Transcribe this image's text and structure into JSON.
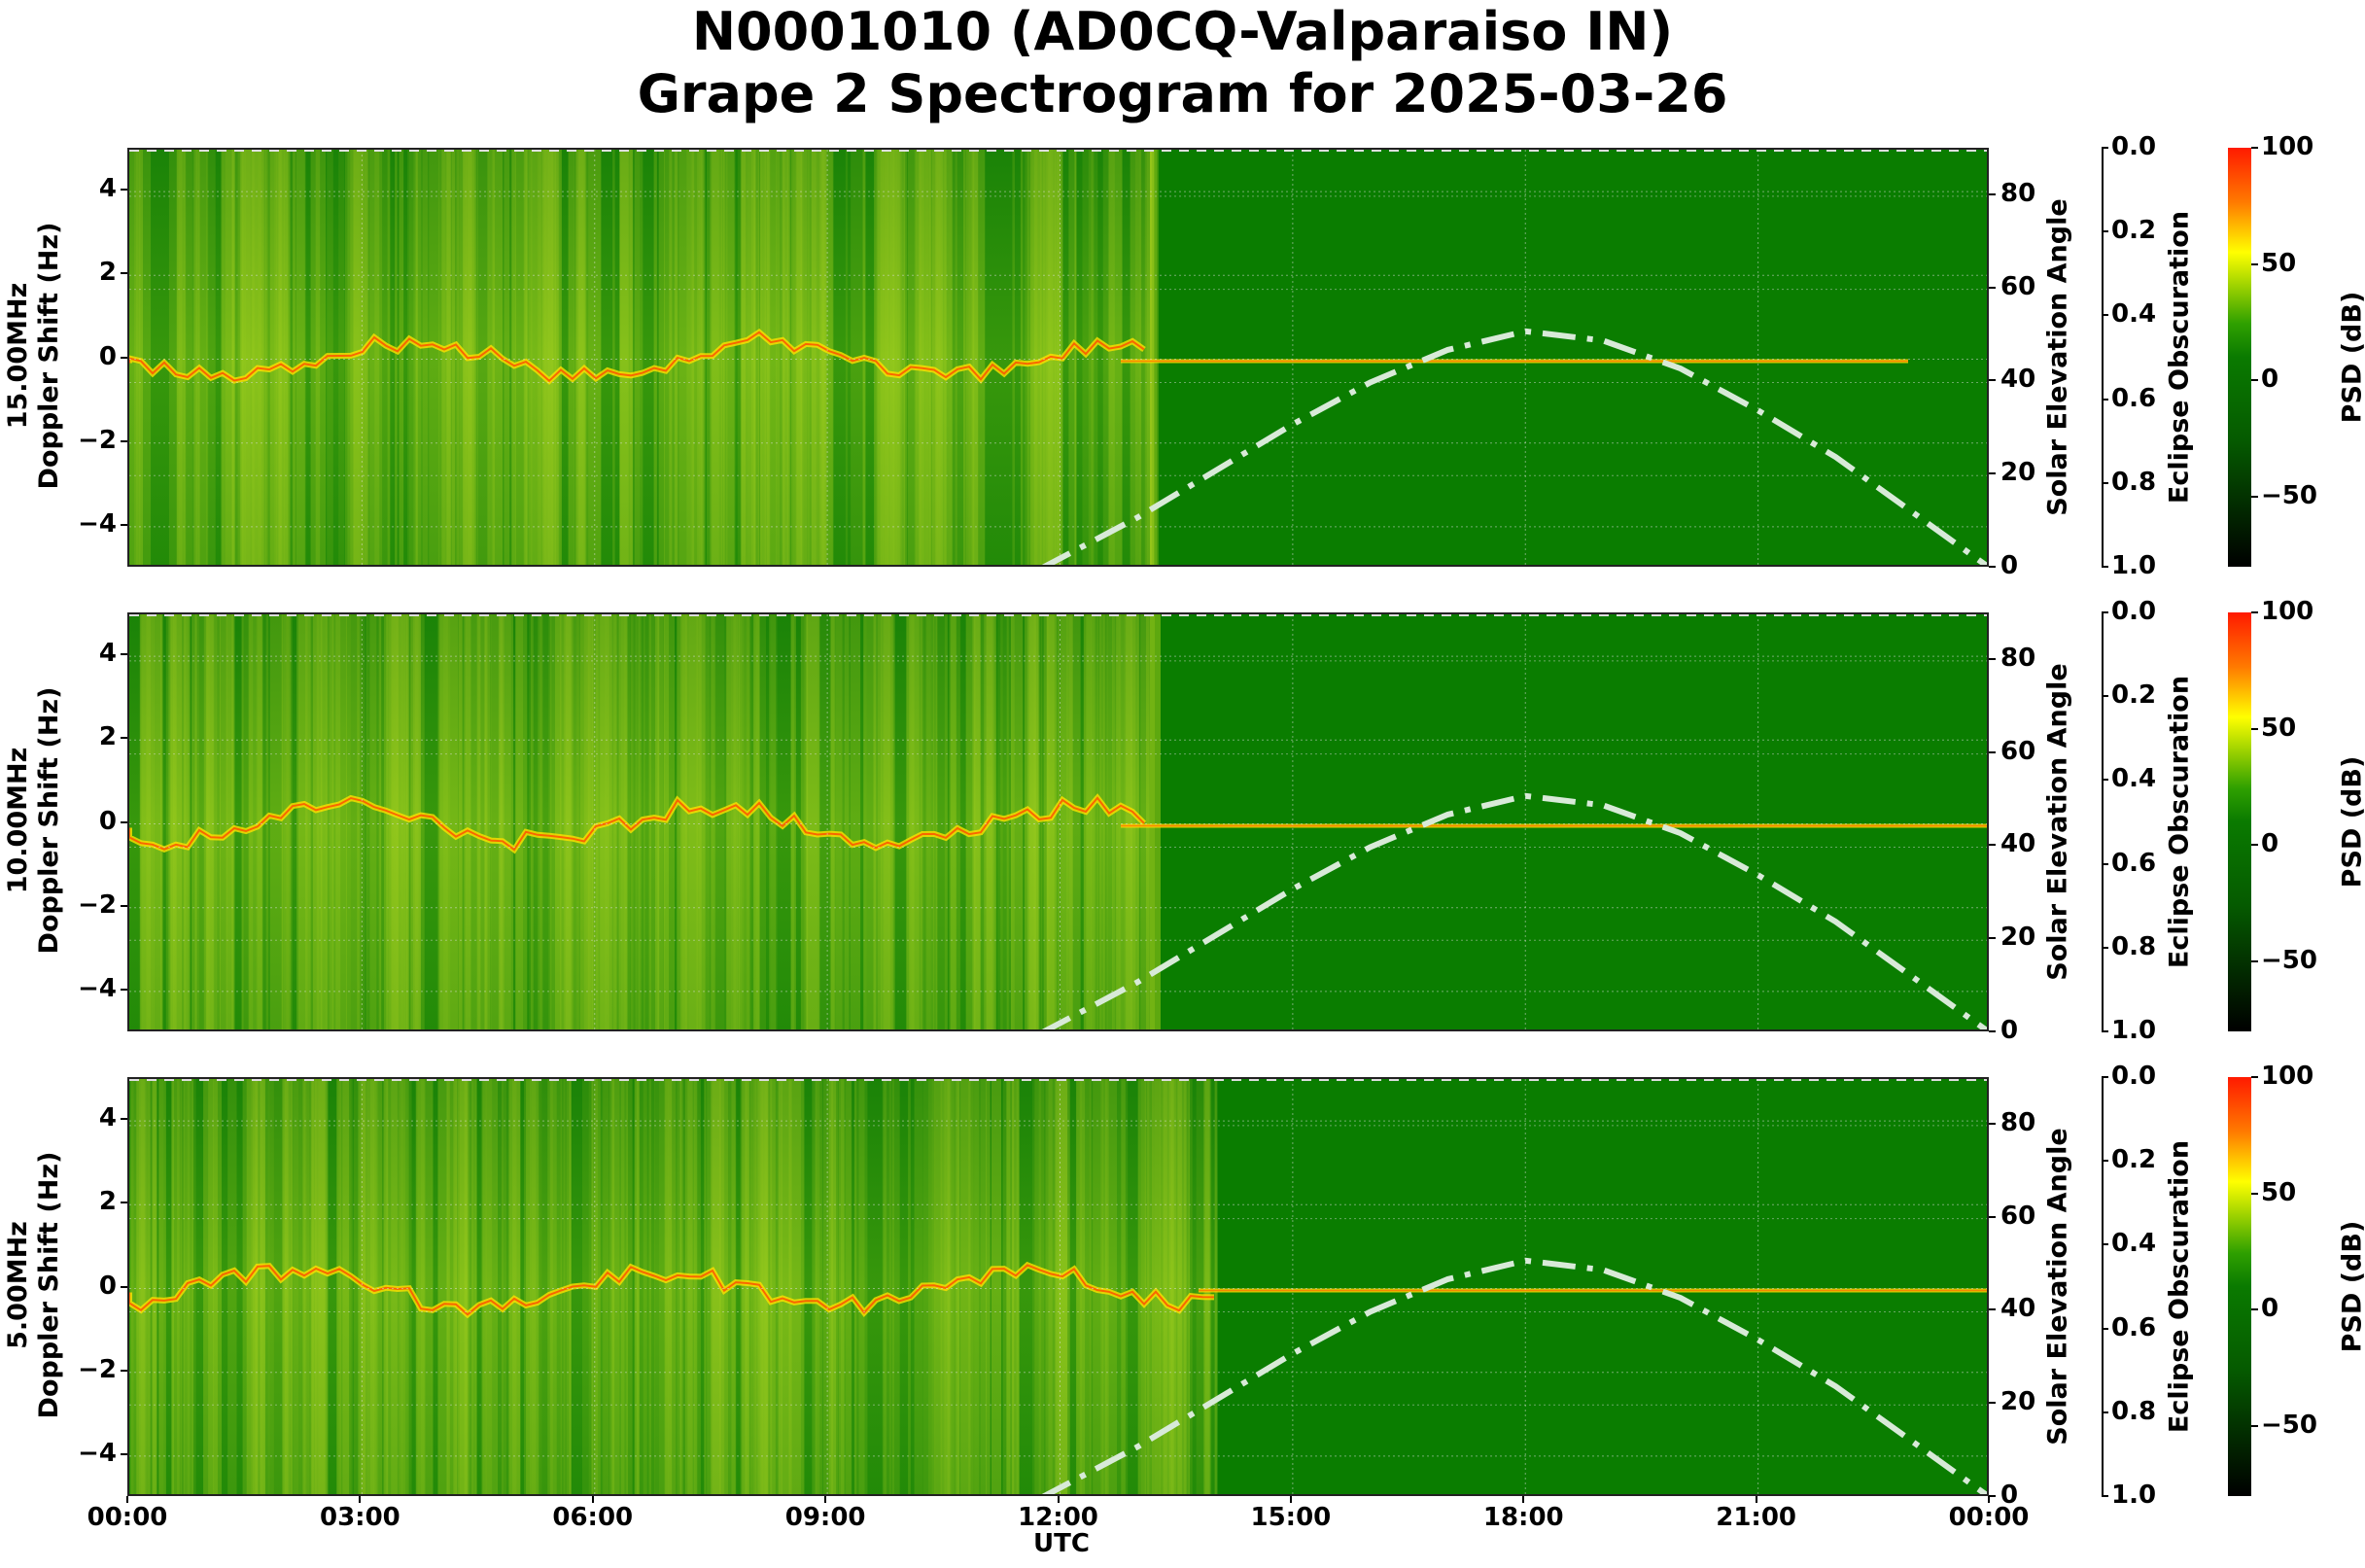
{
  "title": {
    "line1": "N0001010 (AD0CQ-Valparaiso IN)",
    "line2": "Grape 2 Spectrogram for 2025-03-26"
  },
  "x_axis": {
    "label": "UTC",
    "ticks": [
      "00:00",
      "03:00",
      "06:00",
      "09:00",
      "12:00",
      "15:00",
      "18:00",
      "21:00",
      "00:00"
    ]
  },
  "y_axis": {
    "ticks": [
      "4",
      "2",
      "0",
      "−2",
      "−4"
    ],
    "doppler_label": "Doppler Shift (Hz)"
  },
  "right_axis": {
    "label": "Solar Elevation Angle",
    "ticks": [
      "80",
      "60",
      "40",
      "20",
      "0"
    ]
  },
  "eclipse_axis": {
    "label": "Eclipse Obscuration",
    "ticks": [
      "0.0",
      "0.2",
      "0.4",
      "0.6",
      "0.8",
      "1.0"
    ]
  },
  "colorbar": {
    "label": "PSD (dB)",
    "ticks": [
      "100",
      "50",
      "0",
      "−50"
    ]
  },
  "panels": [
    {
      "freq": "15.00MHz"
    },
    {
      "freq": "10.00MHz"
    },
    {
      "freq": "5.00MHz"
    }
  ],
  "chart_data": {
    "type": "heatmap",
    "title": "N0001010 (AD0CQ-Valparaiso IN) Grape 2 Spectrogram for 2025-03-26",
    "xlabel": "UTC",
    "x_ticks": [
      "00:00",
      "03:00",
      "06:00",
      "09:00",
      "12:00",
      "15:00",
      "18:00",
      "21:00",
      "00:00"
    ],
    "ylabel": "Doppler Shift (Hz)",
    "ylim": [
      -5,
      5
    ],
    "y_ticks": [
      -4,
      -2,
      0,
      2,
      4
    ],
    "panels": [
      {
        "name": "15.00MHz",
        "carrier_doppler_hz": 0,
        "note": "strong diffuse Doppler spread 00:00-12:00, steady carrier 12:45-22:30"
      },
      {
        "name": "10.00MHz",
        "carrier_doppler_hz": 0,
        "note": "Doppler excursions up to +1.5 Hz near 03:00, steady carrier after 12:45"
      },
      {
        "name": "5.00MHz",
        "carrier_doppler_hz": 0,
        "note": "broad spread 00:00-14:00, quiet daytime"
      }
    ],
    "secondary_axis": {
      "label": "Solar Elevation Angle",
      "ylim": [
        0,
        90
      ],
      "ticks": [
        0,
        20,
        40,
        60,
        80
      ],
      "series": {
        "name": "solar elevation (dash-dot)",
        "x_hours": [
          11.75,
          13,
          14,
          15,
          16,
          17,
          18,
          19,
          20,
          21,
          22,
          23,
          24
        ],
        "values": [
          0,
          11,
          21,
          31,
          40,
          47,
          51,
          49,
          43,
          34,
          24,
          12,
          0
        ]
      }
    },
    "eclipse_axis": {
      "label": "Eclipse Obscuration",
      "ylim": [
        1.0,
        0.0
      ],
      "ticks": [
        0.0,
        0.2,
        0.4,
        0.6,
        0.8,
        1.0
      ]
    },
    "colorbar": {
      "label": "PSD (dB)",
      "range": [
        -80,
        100
      ],
      "ticks": [
        -50,
        0,
        50,
        100
      ],
      "colormap": "black-green-yellow-red"
    },
    "grid": true
  }
}
